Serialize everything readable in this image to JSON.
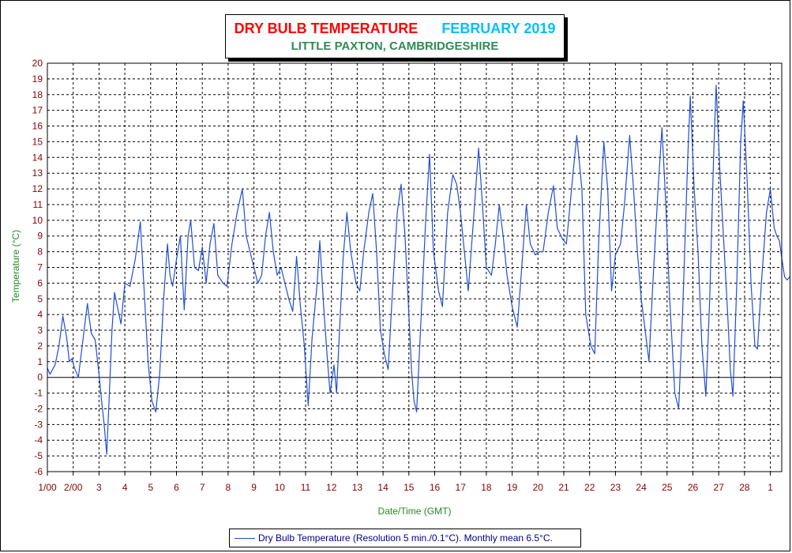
{
  "header": {
    "title": "DRY BULB TEMPERATURE",
    "month": "FEBRUARY 2019",
    "subtitle": "LITTLE PAXTON, CAMBRIDGESHIRE"
  },
  "colors": {
    "title": "#ff0000",
    "month": "#00bfff",
    "subtitle": "#2e8b57",
    "series": "#1f4fd8",
    "tick_labels": "#8b0000",
    "axis_titles": "#228b22",
    "grid": "#000000"
  },
  "chart_data": {
    "type": "line",
    "xlabel": "Date/Time (GMT)",
    "ylabel": "Temperature (°C)",
    "ylim": [
      -6,
      20
    ],
    "y_ticks": [
      -6,
      -5,
      -4,
      -3,
      -2,
      -1,
      0,
      1,
      2,
      3,
      4,
      5,
      6,
      7,
      8,
      9,
      10,
      11,
      12,
      13,
      14,
      15,
      16,
      17,
      18,
      19,
      20
    ],
    "xlim_days": [
      0,
      28.4
    ],
    "x_tick_labels": [
      "1/00",
      "2/00",
      "3",
      "4",
      "5",
      "6",
      "7",
      "8",
      "9",
      "10",
      "11",
      "12",
      "13",
      "14",
      "15",
      "16",
      "17",
      "18",
      "19",
      "20",
      "21",
      "22",
      "23",
      "24",
      "25",
      "26",
      "27",
      "28",
      "1"
    ],
    "grid": true,
    "legend": "Dry Bulb Temperature (Resolution 5 min./0.1°C).  Monthly mean 6.5°C.",
    "legend_position": "bottom",
    "series": [
      {
        "name": "Dry Bulb Temperature (Resolution 5 min./0.1°C).  Monthly mean 6.5°C.",
        "points": [
          [
            0.0,
            0.6
          ],
          [
            0.1,
            0.2
          ],
          [
            0.3,
            0.8
          ],
          [
            0.45,
            2.0
          ],
          [
            0.6,
            3.9
          ],
          [
            0.75,
            2.5
          ],
          [
            0.85,
            1.0
          ],
          [
            0.95,
            1.2
          ],
          [
            1.05,
            0.6
          ],
          [
            1.2,
            0.0
          ],
          [
            1.35,
            2.0
          ],
          [
            1.55,
            4.7
          ],
          [
            1.7,
            2.8
          ],
          [
            1.85,
            2.4
          ],
          [
            2.0,
            0.2
          ],
          [
            2.1,
            -1.5
          ],
          [
            2.2,
            -3.0
          ],
          [
            2.3,
            -4.9
          ],
          [
            2.4,
            -1.0
          ],
          [
            2.5,
            3.0
          ],
          [
            2.6,
            5.4
          ],
          [
            2.75,
            4.2
          ],
          [
            2.85,
            3.4
          ],
          [
            3.0,
            6.0
          ],
          [
            3.2,
            5.8
          ],
          [
            3.4,
            7.5
          ],
          [
            3.6,
            9.9
          ],
          [
            3.75,
            5.5
          ],
          [
            3.9,
            1.0
          ],
          [
            4.05,
            -1.5
          ],
          [
            4.2,
            -2.2
          ],
          [
            4.35,
            0.2
          ],
          [
            4.5,
            5.0
          ],
          [
            4.65,
            8.5
          ],
          [
            4.75,
            6.5
          ],
          [
            4.85,
            5.8
          ],
          [
            5.0,
            7.5
          ],
          [
            5.15,
            9.0
          ],
          [
            5.3,
            4.3
          ],
          [
            5.45,
            9.0
          ],
          [
            5.55,
            10.0
          ],
          [
            5.7,
            7.0
          ],
          [
            5.85,
            6.8
          ],
          [
            6.0,
            8.3
          ],
          [
            6.15,
            6.0
          ],
          [
            6.3,
            8.5
          ],
          [
            6.45,
            9.8
          ],
          [
            6.6,
            6.5
          ],
          [
            6.8,
            6.0
          ],
          [
            6.95,
            5.8
          ],
          [
            7.15,
            8.5
          ],
          [
            7.35,
            10.5
          ],
          [
            7.55,
            12.0
          ],
          [
            7.7,
            9.0
          ],
          [
            7.85,
            8.0
          ],
          [
            8.0,
            7.0
          ],
          [
            8.15,
            6.0
          ],
          [
            8.3,
            6.5
          ],
          [
            8.45,
            9.0
          ],
          [
            8.6,
            10.5
          ],
          [
            8.75,
            8.0
          ],
          [
            8.9,
            6.5
          ],
          [
            9.05,
            7.0
          ],
          [
            9.2,
            6.0
          ],
          [
            9.35,
            5.0
          ],
          [
            9.5,
            4.2
          ],
          [
            9.65,
            7.7
          ],
          [
            9.8,
            4.5
          ],
          [
            9.95,
            2.0
          ],
          [
            10.1,
            -1.8
          ],
          [
            10.25,
            2.5
          ],
          [
            10.45,
            6.0
          ],
          [
            10.55,
            8.7
          ],
          [
            10.7,
            4.5
          ],
          [
            10.85,
            1.0
          ],
          [
            10.95,
            -1.0
          ],
          [
            11.1,
            0.8
          ],
          [
            11.2,
            -1.0
          ],
          [
            11.3,
            2.5
          ],
          [
            11.45,
            7.5
          ],
          [
            11.6,
            10.5
          ],
          [
            11.75,
            8.0
          ],
          [
            11.95,
            6.0
          ],
          [
            12.1,
            5.5
          ],
          [
            12.25,
            8.0
          ],
          [
            12.45,
            10.5
          ],
          [
            12.6,
            11.7
          ],
          [
            12.75,
            8.0
          ],
          [
            12.9,
            3.0
          ],
          [
            13.05,
            1.5
          ],
          [
            13.2,
            0.5
          ],
          [
            13.35,
            5.0
          ],
          [
            13.55,
            10.5
          ],
          [
            13.7,
            12.3
          ],
          [
            13.85,
            9.0
          ],
          [
            14.0,
            4.0
          ],
          [
            14.1,
            0.5
          ],
          [
            14.2,
            -1.5
          ],
          [
            14.3,
            -2.2
          ],
          [
            14.45,
            3.0
          ],
          [
            14.65,
            10.0
          ],
          [
            14.8,
            14.2
          ],
          [
            14.95,
            8.0
          ],
          [
            15.15,
            5.5
          ],
          [
            15.3,
            4.5
          ],
          [
            15.5,
            10.5
          ],
          [
            15.7,
            12.9
          ],
          [
            15.85,
            12.3
          ],
          [
            16.0,
            10.5
          ],
          [
            16.15,
            8.0
          ],
          [
            16.3,
            5.5
          ],
          [
            16.5,
            10.0
          ],
          [
            16.7,
            14.6
          ],
          [
            16.85,
            11.0
          ],
          [
            17.0,
            7.0
          ],
          [
            17.2,
            6.5
          ],
          [
            17.35,
            8.5
          ],
          [
            17.5,
            11.0
          ],
          [
            17.65,
            9.0
          ],
          [
            17.8,
            6.5
          ],
          [
            18.0,
            4.5
          ],
          [
            18.2,
            3.2
          ],
          [
            18.35,
            6.5
          ],
          [
            18.55,
            11.0
          ],
          [
            18.7,
            8.5
          ],
          [
            18.9,
            7.8
          ],
          [
            19.05,
            8.0
          ],
          [
            19.2,
            8.0
          ],
          [
            19.4,
            10.5
          ],
          [
            19.6,
            12.2
          ],
          [
            19.75,
            9.5
          ],
          [
            19.95,
            8.8
          ],
          [
            20.1,
            8.5
          ],
          [
            20.3,
            12.0
          ],
          [
            20.5,
            15.4
          ],
          [
            20.7,
            12.0
          ],
          [
            20.85,
            4.0
          ],
          [
            21.05,
            2.0
          ],
          [
            21.2,
            1.5
          ],
          [
            21.35,
            8.5
          ],
          [
            21.55,
            15.0
          ],
          [
            21.7,
            12.0
          ],
          [
            21.85,
            5.5
          ],
          [
            22.0,
            7.8
          ],
          [
            22.2,
            8.5
          ],
          [
            22.35,
            11.0
          ],
          [
            22.55,
            15.4
          ],
          [
            22.7,
            12.0
          ],
          [
            22.85,
            8.0
          ],
          [
            23.0,
            5.0
          ],
          [
            23.15,
            3.0
          ],
          [
            23.3,
            1.0
          ],
          [
            23.45,
            6.0
          ],
          [
            23.65,
            12.0
          ],
          [
            23.8,
            15.9
          ],
          [
            23.95,
            11.0
          ],
          [
            24.1,
            5.0
          ],
          [
            24.3,
            -1.0
          ],
          [
            24.45,
            -2.0
          ],
          [
            24.6,
            4.0
          ],
          [
            24.8,
            14.0
          ],
          [
            24.9,
            17.9
          ],
          [
            25.05,
            12.0
          ],
          [
            25.2,
            8.0
          ],
          [
            25.35,
            2.0
          ],
          [
            25.5,
            -1.2
          ],
          [
            25.65,
            5.0
          ],
          [
            25.8,
            14.0
          ],
          [
            25.9,
            18.6
          ],
          [
            26.05,
            13.0
          ],
          [
            26.2,
            8.5
          ],
          [
            26.35,
            4.0
          ],
          [
            26.45,
            0.5
          ],
          [
            26.55,
            -1.2
          ],
          [
            26.7,
            6.0
          ],
          [
            26.85,
            15.0
          ],
          [
            26.95,
            17.6
          ],
          [
            27.1,
            12.5
          ],
          [
            27.25,
            6.0
          ],
          [
            27.4,
            2.0
          ],
          [
            27.5,
            1.8
          ],
          [
            27.65,
            6.0
          ],
          [
            27.85,
            10.5
          ],
          [
            28.0,
            12.0
          ],
          [
            28.15,
            9.5
          ],
          [
            28.25,
            9.0
          ],
          [
            28.35,
            8.7
          ],
          [
            28.45,
            7.5
          ],
          [
            28.55,
            6.4
          ],
          [
            28.65,
            6.2
          ],
          [
            28.75,
            6.4
          ]
        ]
      }
    ]
  }
}
